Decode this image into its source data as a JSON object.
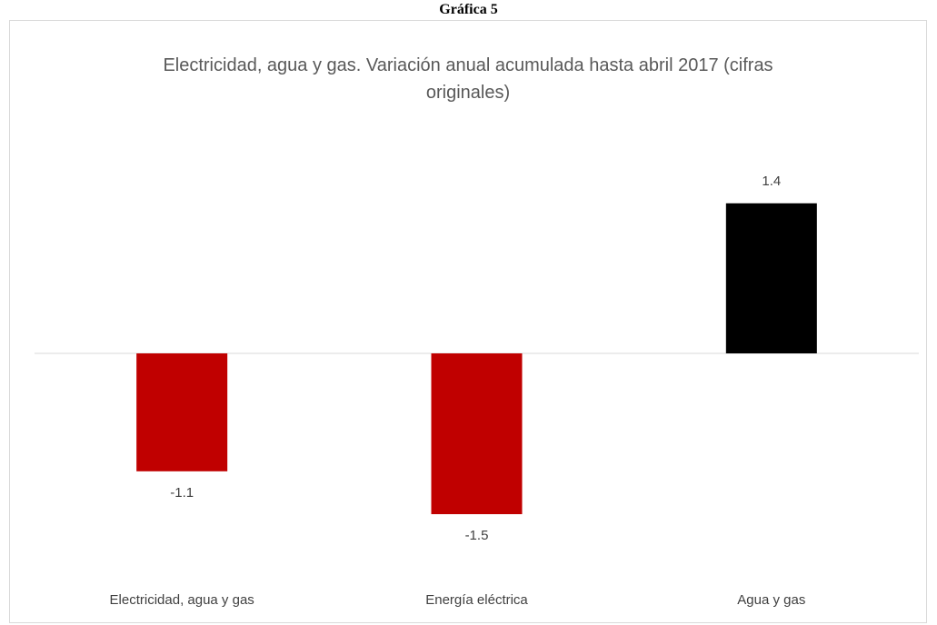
{
  "heading": "Gráfica 5",
  "chart_data": {
    "type": "bar",
    "title": "Electricidad, agua y gas. Variación anual acumulada hasta abril 2017 (cifras originales)",
    "categories": [
      "Electricidad, agua y gas",
      "Energía eléctrica",
      "Agua y gas"
    ],
    "values": [
      -1.1,
      -1.5,
      1.4
    ],
    "colors": [
      "#c00000",
      "#c00000",
      "#000000"
    ],
    "ylim": [
      -2,
      2
    ],
    "grid": false
  }
}
